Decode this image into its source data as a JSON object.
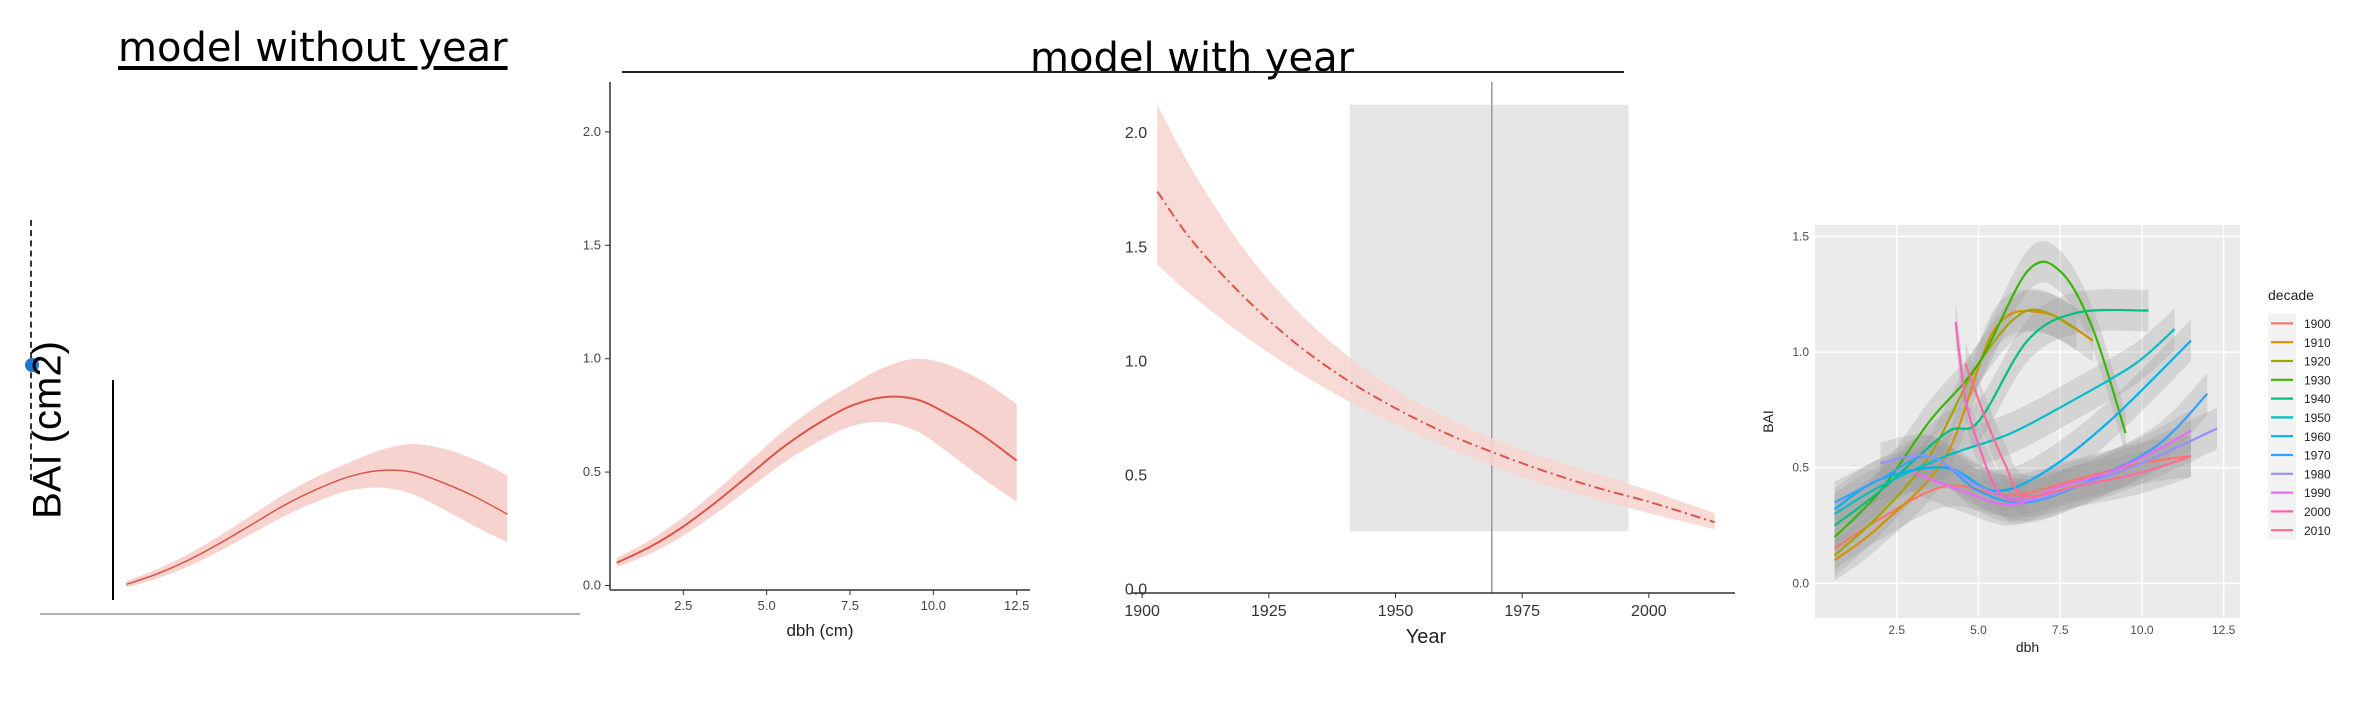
{
  "headings": {
    "left": "model without year",
    "right": "model with year"
  },
  "bai_axis_label": "BAI (cm2)",
  "colors": {
    "ribbon": "#f7d3cf",
    "line": "#d9574a",
    "shaded_region": "#e6e6e6",
    "gg_panel": "#ebebeb"
  },
  "chart_data": [
    {
      "type": "line",
      "x": [
        0.5,
        1.5,
        2.5,
        3.5,
        4.5,
        5.5,
        6.5,
        7.5,
        8.5,
        9.5,
        10.5,
        11.5,
        12.5
      ],
      "y": [
        0.1,
        0.17,
        0.26,
        0.37,
        0.49,
        0.61,
        0.71,
        0.79,
        0.83,
        0.82,
        0.75,
        0.66,
        0.55
      ],
      "lower": [
        0.08,
        0.14,
        0.22,
        0.32,
        0.43,
        0.54,
        0.63,
        0.7,
        0.72,
        0.68,
        0.58,
        0.47,
        0.37
      ],
      "upper": [
        0.12,
        0.2,
        0.3,
        0.42,
        0.55,
        0.68,
        0.79,
        0.88,
        0.96,
        1.0,
        0.97,
        0.9,
        0.8
      ],
      "xlabel": "dbh  (cm)",
      "xticks": [
        "2.5",
        "5.0",
        "7.5",
        "10.0",
        "12.5"
      ],
      "yticks": [
        "0.0",
        "0.5",
        "1.0",
        "1.5",
        "2.0"
      ],
      "xlim": [
        0.3,
        12.9
      ],
      "ylim": [
        -0.02,
        2.22
      ]
    },
    {
      "type": "line",
      "x": [
        1903,
        1910,
        1920,
        1930,
        1940,
        1950,
        1960,
        1970,
        1980,
        1990,
        2000,
        2013
      ],
      "y": [
        1.74,
        1.52,
        1.28,
        1.08,
        0.92,
        0.79,
        0.68,
        0.59,
        0.51,
        0.44,
        0.38,
        0.29
      ],
      "lower": [
        1.42,
        1.28,
        1.11,
        0.96,
        0.83,
        0.72,
        0.62,
        0.53,
        0.45,
        0.39,
        0.33,
        0.26
      ],
      "upper": [
        2.12,
        1.83,
        1.49,
        1.23,
        1.03,
        0.87,
        0.75,
        0.65,
        0.57,
        0.5,
        0.43,
        0.33
      ],
      "shaded_x": [
        1941,
        1996
      ],
      "shaded_y": [
        0.25,
        2.12
      ],
      "vline_x": 1969,
      "xlabel": "Year",
      "xticks": [
        "1900",
        "1925",
        "1950",
        "1975",
        "2000"
      ],
      "yticks": [
        "0.0",
        "0.5",
        "1.0",
        "1.5",
        "2.0"
      ],
      "xlim": [
        1898,
        2017
      ],
      "ylim": [
        -0.02,
        2.22
      ]
    },
    {
      "type": "line",
      "xlabel": "dbh",
      "ylabel": "BAI",
      "xticks": [
        "2.5",
        "5.0",
        "7.5",
        "10.0",
        "12.5"
      ],
      "yticks": [
        "0.0",
        "0.5",
        "1.0",
        "1.5"
      ],
      "xlim": [
        0.0,
        13.0
      ],
      "ylim": [
        -0.15,
        1.55
      ],
      "legend_title": "decade",
      "legend_position": "right",
      "series": [
        {
          "name": "1900",
          "color": "#f8766d",
          "x": [
            0.6,
            2,
            4,
            6,
            8,
            10,
            11.5
          ],
          "y": [
            0.15,
            0.28,
            0.42,
            0.38,
            0.45,
            0.52,
            0.55
          ]
        },
        {
          "name": "1910",
          "color": "#d89000",
          "x": [
            0.6,
            2,
            4,
            5.5,
            7,
            8.5
          ],
          "y": [
            0.1,
            0.25,
            0.55,
            1.1,
            1.17,
            1.05
          ]
        },
        {
          "name": "1920",
          "color": "#a3a500",
          "x": [
            0.6,
            2,
            3.5,
            5,
            6.5,
            8
          ],
          "y": [
            0.12,
            0.3,
            0.55,
            0.95,
            1.18,
            1.1
          ]
        },
        {
          "name": "1930",
          "color": "#39b600",
          "x": [
            0.6,
            2,
            3.5,
            5,
            6.5,
            7.5,
            8.5,
            9.5
          ],
          "y": [
            0.2,
            0.4,
            0.7,
            0.95,
            1.35,
            1.35,
            1.1,
            0.65
          ]
        },
        {
          "name": "1940",
          "color": "#00bf7d",
          "x": [
            0.6,
            2,
            4,
            5,
            6.5,
            8,
            10.2
          ],
          "y": [
            0.25,
            0.4,
            0.65,
            0.7,
            1.05,
            1.17,
            1.18
          ]
        },
        {
          "name": "1950",
          "color": "#00bfc4",
          "x": [
            0.6,
            2,
            4,
            6,
            8,
            9.8,
            11
          ],
          "y": [
            0.3,
            0.42,
            0.55,
            0.65,
            0.8,
            0.95,
            1.1
          ]
        },
        {
          "name": "1960",
          "color": "#00b0f6",
          "x": [
            0.6,
            2,
            4,
            5.5,
            7,
            9,
            11.5
          ],
          "y": [
            0.32,
            0.45,
            0.5,
            0.4,
            0.48,
            0.7,
            1.05
          ]
        },
        {
          "name": "1970",
          "color": "#35a2ff",
          "x": [
            0.6,
            2,
            3.5,
            5,
            6.5,
            8.5,
            10.5,
            12
          ],
          "y": [
            0.35,
            0.45,
            0.55,
            0.4,
            0.35,
            0.45,
            0.6,
            0.82
          ]
        },
        {
          "name": "1980",
          "color": "#9590ff",
          "x": [
            2,
            3.5,
            5,
            6.5,
            8,
            10,
            12.3
          ],
          "y": [
            0.52,
            0.55,
            0.42,
            0.36,
            0.42,
            0.52,
            0.67
          ]
        },
        {
          "name": "1990",
          "color": "#e76bf3",
          "x": [
            3,
            4.5,
            6,
            7.5,
            9,
            10.5,
            11.5
          ],
          "y": [
            0.48,
            0.4,
            0.34,
            0.42,
            0.48,
            0.58,
            0.66
          ]
        },
        {
          "name": "2000",
          "color": "#ff62bc",
          "x": [
            4.3,
            4.6,
            5.0,
            5.5,
            6.0,
            6.5
          ],
          "y": [
            1.13,
            0.8,
            0.6,
            0.42,
            0.36,
            0.38
          ]
        },
        {
          "name": "2010",
          "color": "#ff6c91",
          "x": [
            4.6,
            5.2,
            5.8,
            6.4,
            8,
            10,
            11.5
          ],
          "y": [
            0.95,
            0.72,
            0.52,
            0.38,
            0.42,
            0.48,
            0.55
          ]
        }
      ]
    }
  ]
}
